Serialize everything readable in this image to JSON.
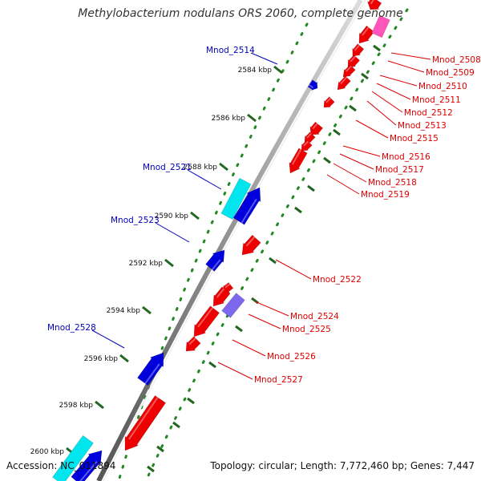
{
  "title": "Methylobacterium nodulans ORS 2060, complete genome",
  "footer": {
    "accession": "Accession: NC_011894",
    "summary": "Topology: circular; Length: 7,772,460 bp; Genes: 7,447"
  },
  "colors": {
    "forward": "#0000dd",
    "reverse": "#ee0000",
    "rrna": "#00e5ee",
    "trna": "#ff55bb",
    "misc": "#7b68ee",
    "label_forward": "#0000bb",
    "label_reverse": "#dd0000",
    "backbone": "#888888",
    "tick_minor": "#228822",
    "tick_major": "#226622"
  },
  "ticks": [
    {
      "label": "2584 kbp"
    },
    {
      "label": "2586 kbp"
    },
    {
      "label": "2588 kbp"
    },
    {
      "label": "2590 kbp"
    },
    {
      "label": "2592 kbp"
    },
    {
      "label": "2594 kbp"
    },
    {
      "label": "2596 kbp"
    },
    {
      "label": "2598 kbp"
    },
    {
      "label": "2600 kbp"
    }
  ],
  "genes_forward": [
    {
      "name": "Mnod_2514"
    },
    {
      "name": "Mnod_2521"
    },
    {
      "name": "Mnod_2523"
    },
    {
      "name": "Mnod_2528"
    }
  ],
  "genes_reverse": [
    {
      "name": "Mnod_2508"
    },
    {
      "name": "Mnod_2509"
    },
    {
      "name": "Mnod_2510"
    },
    {
      "name": "Mnod_2511"
    },
    {
      "name": "Mnod_2512"
    },
    {
      "name": "Mnod_2513"
    },
    {
      "name": "Mnod_2515"
    },
    {
      "name": "Mnod_2516"
    },
    {
      "name": "Mnod_2517"
    },
    {
      "name": "Mnod_2518"
    },
    {
      "name": "Mnod_2519"
    },
    {
      "name": "Mnod_2522"
    },
    {
      "name": "Mnod_2524"
    },
    {
      "name": "Mnod_2525"
    },
    {
      "name": "Mnod_2526"
    },
    {
      "name": "Mnod_2527"
    }
  ]
}
